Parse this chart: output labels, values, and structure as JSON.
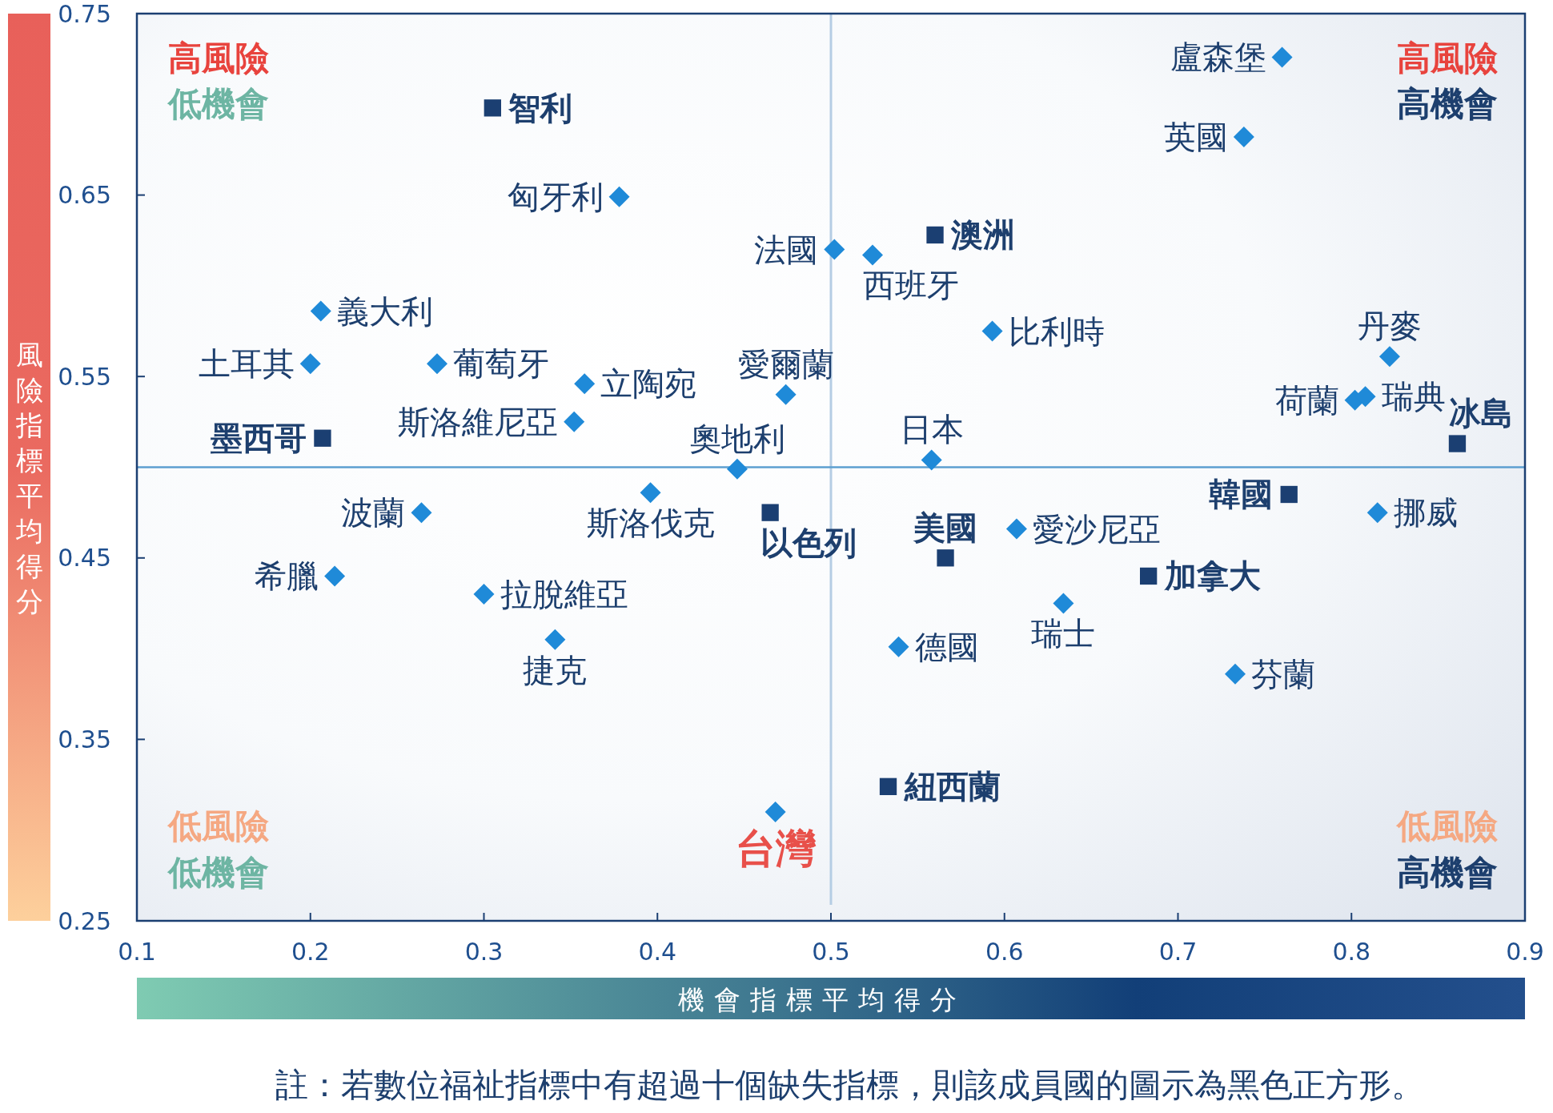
{
  "chart_data": {
    "type": "scatter",
    "xlabel": "機會指標平均得分",
    "ylabel": "風險指標平均得分",
    "xlim": [
      0.1,
      0.9
    ],
    "xticks": [
      0.1,
      0.2,
      0.3,
      0.4,
      0.5,
      0.6,
      0.7,
      0.8,
      0.9
    ],
    "ylim": [
      0.25,
      0.75
    ],
    "yticks": [
      0.25,
      0.35,
      0.45,
      0.55,
      0.65,
      0.75
    ],
    "series": [
      {
        "color": "#1f8ad8",
        "marker": "diamond",
        "x": [
          0.76,
          0.738,
          0.378,
          0.502,
          0.524,
          0.206,
          0.593,
          0.822,
          0.2,
          0.273,
          0.358,
          0.474,
          0.802,
          0.808,
          0.352,
          0.558,
          0.446,
          0.396,
          0.264,
          0.815,
          0.607,
          0.214,
          0.3,
          0.634,
          0.341,
          0.539,
          0.733,
          0.468
        ],
        "values": [
          0.726,
          0.682,
          0.649,
          0.62,
          0.617,
          0.586,
          0.575,
          0.561,
          0.557,
          0.557,
          0.546,
          0.54,
          0.537,
          0.539,
          0.525,
          0.504,
          0.499,
          0.486,
          0.475,
          0.475,
          0.466,
          0.44,
          0.43,
          0.425,
          0.405,
          0.401,
          0.386,
          0.31
        ]
      },
      {
        "color": "#1b3f72",
        "marker": "square",
        "x": [
          0.305,
          0.56,
          0.207,
          0.861,
          0.764,
          0.465,
          0.566,
          0.683,
          0.533
        ],
        "values": [
          0.698,
          0.628,
          0.516,
          0.513,
          0.485,
          0.475,
          0.45,
          0.44,
          0.324
        ]
      }
    ],
    "ref_lines": [
      {
        "axis": "x",
        "value": 0.5,
        "color": "#b5cde4"
      },
      {
        "axis": "y",
        "value": 0.5,
        "color": "#5d9fd0"
      }
    ],
    "annotations": [
      {
        "text": "盧森堡",
        "x": 0.76,
        "y": 0.726
      },
      {
        "text": "英國",
        "x": 0.738,
        "y": 0.682
      },
      {
        "text": "匈牙利",
        "x": 0.378,
        "y": 0.649
      },
      {
        "text": "法國",
        "x": 0.502,
        "y": 0.62
      },
      {
        "text": "西班牙",
        "x": 0.524,
        "y": 0.617
      },
      {
        "text": "義大利",
        "x": 0.206,
        "y": 0.586
      },
      {
        "text": "比利時",
        "x": 0.593,
        "y": 0.575
      },
      {
        "text": "丹麥",
        "x": 0.822,
        "y": 0.561
      },
      {
        "text": "土耳其",
        "x": 0.2,
        "y": 0.557
      },
      {
        "text": "葡萄牙",
        "x": 0.273,
        "y": 0.557
      },
      {
        "text": "立陶宛",
        "x": 0.358,
        "y": 0.546
      },
      {
        "text": "愛爾蘭",
        "x": 0.474,
        "y": 0.54
      },
      {
        "text": "荷蘭",
        "x": 0.802,
        "y": 0.537
      },
      {
        "text": "瑞典",
        "x": 0.808,
        "y": 0.539
      },
      {
        "text": "斯洛維尼亞",
        "x": 0.352,
        "y": 0.525
      },
      {
        "text": "日本",
        "x": 0.558,
        "y": 0.504
      },
      {
        "text": "奧地利",
        "x": 0.446,
        "y": 0.499
      },
      {
        "text": "斯洛伐克",
        "x": 0.396,
        "y": 0.486
      },
      {
        "text": "波蘭",
        "x": 0.264,
        "y": 0.475
      },
      {
        "text": "挪威",
        "x": 0.815,
        "y": 0.475
      },
      {
        "text": "愛沙尼亞",
        "x": 0.607,
        "y": 0.466
      },
      {
        "text": "希臘",
        "x": 0.214,
        "y": 0.44
      },
      {
        "text": "拉脫維亞",
        "x": 0.3,
        "y": 0.43
      },
      {
        "text": "瑞士",
        "x": 0.634,
        "y": 0.425
      },
      {
        "text": "捷克",
        "x": 0.341,
        "y": 0.405
      },
      {
        "text": "德國",
        "x": 0.539,
        "y": 0.401
      },
      {
        "text": "芬蘭",
        "x": 0.733,
        "y": 0.386
      },
      {
        "text": "台灣",
        "x": 0.468,
        "y": 0.31
      },
      {
        "text": "智利",
        "x": 0.305,
        "y": 0.698
      },
      {
        "text": "澳洲",
        "x": 0.56,
        "y": 0.628
      },
      {
        "text": "墨西哥",
        "x": 0.207,
        "y": 0.516
      },
      {
        "text": "冰島",
        "x": 0.861,
        "y": 0.513
      },
      {
        "text": "韓國",
        "x": 0.764,
        "y": 0.485
      },
      {
        "text": "以色列",
        "x": 0.465,
        "y": 0.475
      },
      {
        "text": "美國",
        "x": 0.566,
        "y": 0.45
      },
      {
        "text": "加拿大",
        "x": 0.683,
        "y": 0.44
      },
      {
        "text": "紐西蘭",
        "x": 0.533,
        "y": 0.324
      },
      "高風險",
      "低機會",
      "高風險",
      "高機會",
      "低風險",
      "低機會",
      "低風險",
      "高機會",
      "註：若數位福祉指標中有超過十個缺失指標，則該成員國的圖示為黑色正方形。"
    ]
  }
}
